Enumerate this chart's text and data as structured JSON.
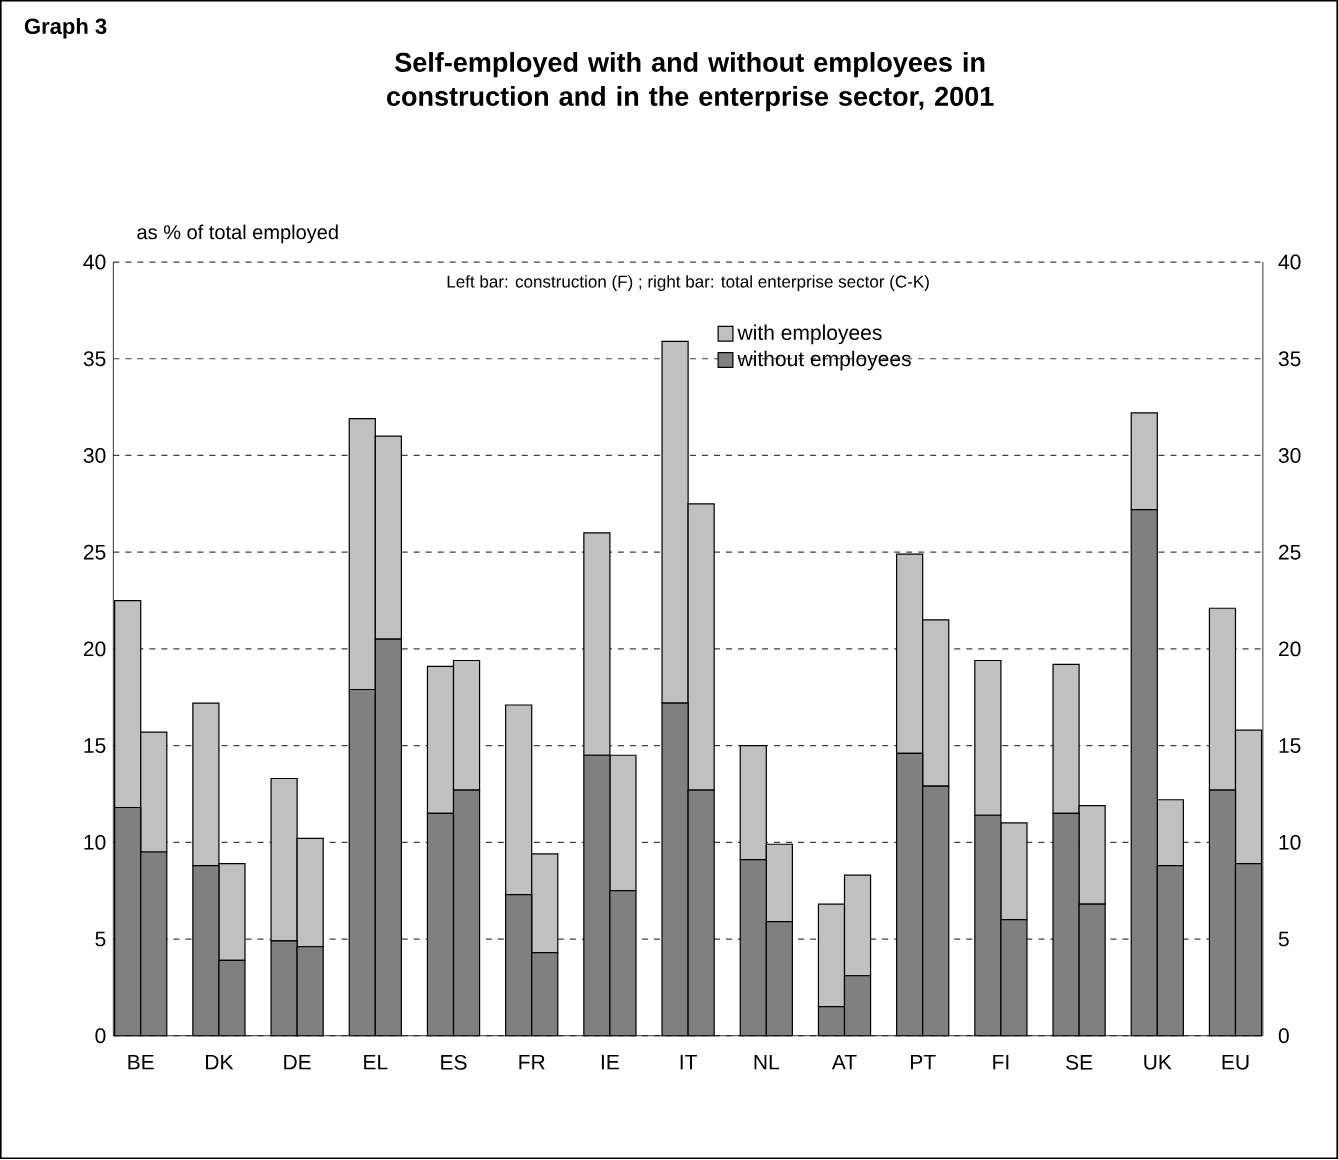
{
  "chart_data": {
    "type": "bar",
    "stacked": true,
    "title": "Self-employed with and without employees in construction and in the enterprise sector, 2001",
    "ylabel": "as % of total employed",
    "annotations": [
      "Graph 3",
      "Left bar: construction (F) ; right bar: total enterprise sector (C-K)"
    ],
    "categories": [
      "BE",
      null,
      null,
      "DK",
      null,
      null,
      "DE",
      null,
      null,
      "EL",
      null,
      null,
      "ES",
      null,
      null,
      "FR",
      null,
      null,
      "IE",
      null,
      null,
      "IT",
      null,
      null,
      "NL",
      null,
      null,
      "AT",
      null,
      null,
      "PT",
      null,
      null,
      "FI",
      null,
      null,
      "SE",
      null,
      null,
      "UK",
      null,
      null,
      "EU",
      null
    ],
    "series": [
      {
        "name": "without employees",
        "color": "#808080",
        "values": [
          11.8,
          9.5,
          null,
          8.8,
          3.9,
          null,
          4.9,
          4.6,
          null,
          17.9,
          20.5,
          null,
          11.5,
          12.7,
          null,
          7.3,
          4.3,
          null,
          14.5,
          7.5,
          null,
          17.2,
          12.7,
          null,
          9.1,
          5.9,
          null,
          1.5,
          3.1,
          null,
          14.6,
          12.9,
          null,
          11.4,
          6.0,
          null,
          11.5,
          6.8,
          null,
          27.2,
          8.8,
          null,
          12.7,
          8.9
        ]
      },
      {
        "name": "with employees",
        "color": "#c0c0c0",
        "values": [
          10.7,
          6.2,
          null,
          8.4,
          5.0,
          null,
          8.4,
          5.6,
          null,
          14.0,
          10.5,
          null,
          7.6,
          6.7,
          null,
          9.8,
          5.1,
          null,
          11.5,
          7.0,
          null,
          18.7,
          14.8,
          null,
          5.9,
          4.0,
          null,
          5.3,
          5.2,
          null,
          10.3,
          8.6,
          null,
          8.0,
          5.0,
          null,
          7.7,
          5.1,
          null,
          5.0,
          3.4,
          null,
          9.4,
          6.9
        ]
      }
    ],
    "ylim": [
      0,
      40
    ],
    "yticks": [
      0,
      5,
      10,
      15,
      20,
      25,
      30,
      35,
      40
    ],
    "y2lim": [
      0,
      40
    ],
    "y2ticks": [
      0,
      5,
      10,
      15,
      20,
      25,
      30,
      35,
      40
    ],
    "grid": "y",
    "legend": "top"
  }
}
